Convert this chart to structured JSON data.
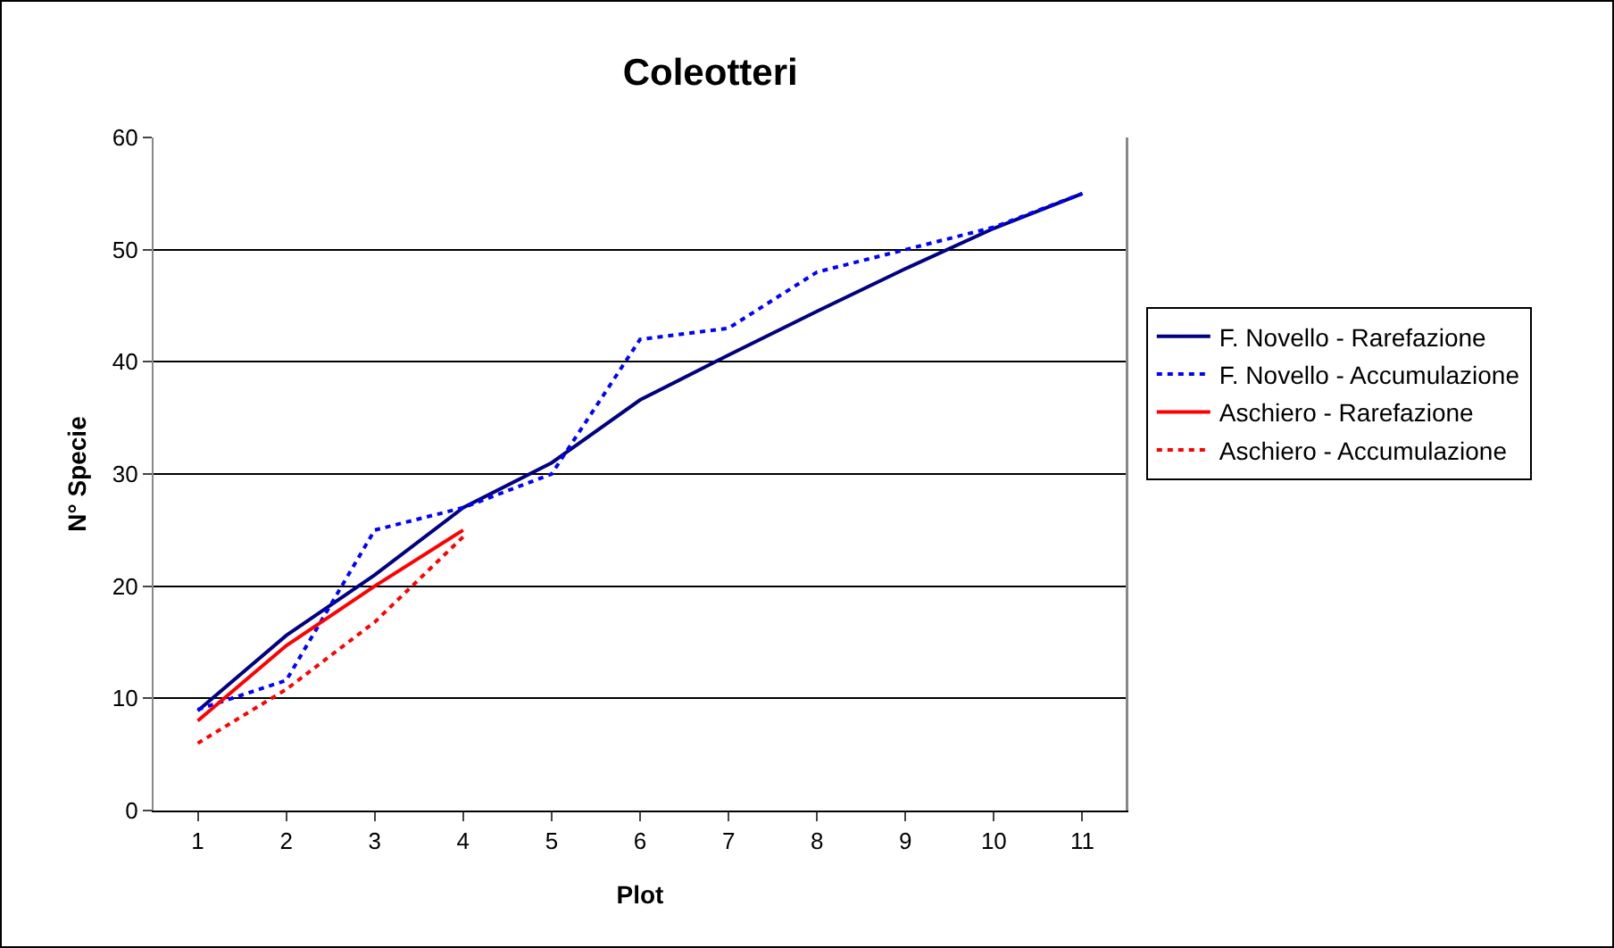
{
  "chart_data": {
    "type": "line",
    "title": "Coleotteri",
    "xlabel": "Plot",
    "ylabel": "N° Specie",
    "categories": [
      "1",
      "2",
      "3",
      "4",
      "5",
      "6",
      "7",
      "8",
      "9",
      "10",
      "11"
    ],
    "series": [
      {
        "name": "F. Novello - Rarefazione",
        "color": "#000080",
        "line_style": "solid",
        "values": [
          8.9,
          15.6,
          21,
          27,
          31,
          36.6,
          40.6,
          44.5,
          48.3,
          51.9,
          55
        ]
      },
      {
        "name": "F. Novello - Accumulazione",
        "color": "#0000ff",
        "line_style": "dotted",
        "values": [
          9,
          11.6,
          25,
          27,
          30,
          42,
          43,
          48,
          50,
          52,
          55
        ]
      },
      {
        "name": "Aschiero - Rarefazione",
        "color": "#ff0000",
        "line_style": "solid",
        "values": [
          8,
          14.7,
          20,
          25,
          null,
          null,
          null,
          null,
          null,
          null,
          null
        ]
      },
      {
        "name": "Aschiero - Accumulazione",
        "color": "#ff0000",
        "line_style": "dotted",
        "values": [
          6,
          10.8,
          16.8,
          24.4,
          null,
          null,
          null,
          null,
          null,
          null,
          null
        ]
      }
    ],
    "ylim": [
      0,
      60
    ],
    "yticks": [
      0,
      10,
      20,
      30,
      40,
      50,
      60
    ],
    "grid": "y",
    "legend": "right",
    "marker": "none"
  }
}
